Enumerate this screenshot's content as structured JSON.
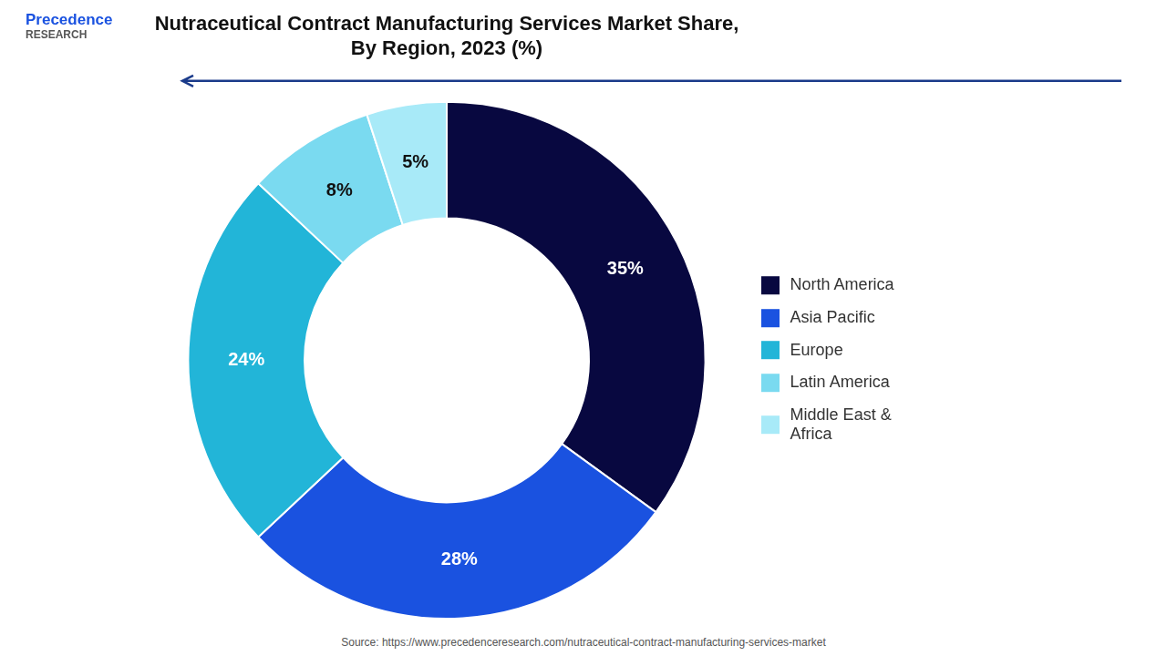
{
  "chart_data": {
    "type": "doughnut",
    "title": "Nutraceutical Contract Manufacturing Services Market Share,\nBy Region, 2023 (%)",
    "categories": [
      "North America",
      "Asia Pacific",
      "Europe",
      "Latin America",
      "Middle East &\nAfrica"
    ],
    "values": [
      35,
      28,
      24,
      8,
      5
    ],
    "value_labels": [
      "35%",
      "28%",
      "24%",
      "8%",
      "5%"
    ],
    "colors": [
      "#080840",
      "#1a52e0",
      "#22b5d8",
      "#7adaf0",
      "#a8eaf8"
    ],
    "data_labels": true,
    "legend": "right",
    "annotations": [
      "Precedence",
      "RESEARCH",
      "Source: https://www.precedenceresearch.com/nutraceutical-contract-manufacturing-services-market"
    ]
  }
}
